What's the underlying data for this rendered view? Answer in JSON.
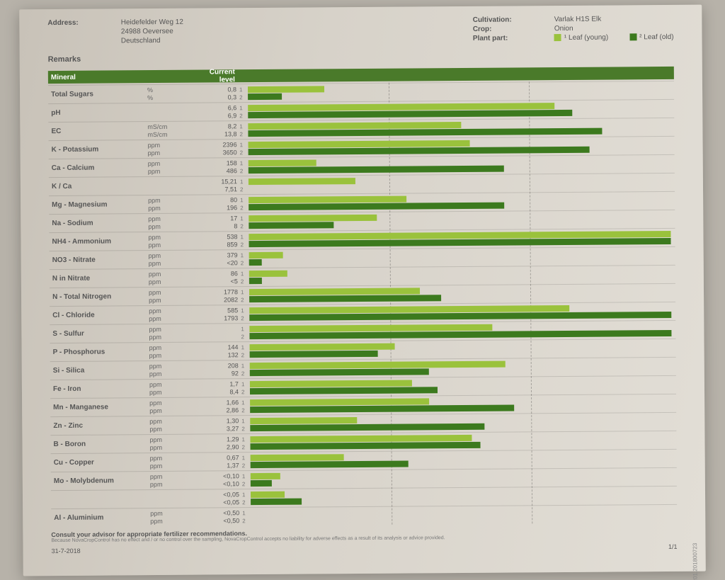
{
  "colors": {
    "young": "#9ac23c",
    "old": "#3c7a1e",
    "header_bg": "#4a7a2a",
    "text": "#4a4a4a",
    "paper": "#d7d2c9"
  },
  "header": {
    "address_label": "Address:",
    "address_lines": [
      "Heidefelder Weg 12",
      "24988  Oeversee",
      "Deutschland"
    ],
    "cultivation_label": "Cultivation:",
    "cultivation_value": "Varlak H1S Elk",
    "crop_label": "Crop:",
    "crop_value": "Onion",
    "plantpart_label": "Plant part:",
    "legend_young": "¹ Leaf (young)",
    "legend_old": "² Leaf (old)",
    "remarks_label": "Remarks"
  },
  "table": {
    "col_mineral": "Mineral",
    "col_currentlevel": "Current level",
    "bar_scale_max": 100,
    "gridlines_pct": [
      33,
      66
    ],
    "rows": [
      {
        "name": "Total Sugars",
        "unit": "%",
        "v1": "0,8",
        "v2": "0,3",
        "b1": 18,
        "b2": 8
      },
      {
        "name": "pH",
        "unit": "",
        "v1": "6,6",
        "v2": "6,9",
        "b1": 72,
        "b2": 76
      },
      {
        "name": "EC",
        "unit": "mS/cm",
        "v1": "8,2",
        "v2": "13,8",
        "b1": 50,
        "b2": 83
      },
      {
        "name": "K - Potassium",
        "unit": "ppm",
        "v1": "2396",
        "v2": "3650",
        "b1": 52,
        "b2": 80
      },
      {
        "name": "Ca - Calcium",
        "unit": "ppm",
        "v1": "158",
        "v2": "486",
        "b1": 16,
        "b2": 60
      },
      {
        "name": "K / Ca",
        "unit": "",
        "v1": "15,21",
        "v2": "7,51",
        "b1": 25,
        "b2": 0
      },
      {
        "name": "Mg - Magnesium",
        "unit": "ppm",
        "v1": "80",
        "v2": "196",
        "b1": 37,
        "b2": 60
      },
      {
        "name": "Na - Sodium",
        "unit": "ppm",
        "v1": "17",
        "v2": "8",
        "b1": 30,
        "b2": 20
      },
      {
        "name": "NH4 - Ammonium",
        "unit": "ppm",
        "v1": "538",
        "v2": "859",
        "b1": 99,
        "b2": 99
      },
      {
        "name": "NO3 - Nitrate",
        "unit": "ppm",
        "v1": "379",
        "v2": "<20",
        "b1": 8,
        "b2": 3
      },
      {
        "name": "N in Nitrate",
        "unit": "ppm",
        "v1": "86",
        "v2": "<5",
        "b1": 9,
        "b2": 3
      },
      {
        "name": "N - Total Nitrogen",
        "unit": "ppm",
        "v1": "1778",
        "v2": "2082",
        "b1": 40,
        "b2": 45
      },
      {
        "name": "Cl - Chloride",
        "unit": "ppm",
        "v1": "585",
        "v2": "1793",
        "b1": 75,
        "b2": 99
      },
      {
        "name": "S - Sulfur",
        "unit": "ppm",
        "v1": "",
        "v2": "",
        "b1": 57,
        "b2": 99
      },
      {
        "name": "P - Phosphorus",
        "unit": "ppm",
        "v1": "144",
        "v2": "132",
        "b1": 34,
        "b2": 30
      },
      {
        "name": "Si - Silica",
        "unit": "ppm",
        "v1": "208",
        "v2": "92",
        "b1": 60,
        "b2": 42
      },
      {
        "name": "Fe - Iron",
        "unit": "ppm",
        "v1": "1,7",
        "v2": "8,4",
        "b1": 38,
        "b2": 44
      },
      {
        "name": "Mn - Manganese",
        "unit": "ppm",
        "v1": "1,66",
        "v2": "2,86",
        "b1": 42,
        "b2": 62
      },
      {
        "name": "Zn - Zinc",
        "unit": "ppm",
        "v1": "1,30",
        "v2": "3,27",
        "b1": 25,
        "b2": 55
      },
      {
        "name": "B - Boron",
        "unit": "ppm",
        "v1": "1,29",
        "v2": "2,90",
        "b1": 52,
        "b2": 54
      },
      {
        "name": "Cu - Copper",
        "unit": "ppm",
        "v1": "0,67",
        "v2": "1,37",
        "b1": 22,
        "b2": 37
      },
      {
        "name": "Mo - Molybdenum",
        "unit": "ppm",
        "v1": "<0,10",
        "v2": "<0,10",
        "b1": 7,
        "b2": 5
      },
      {
        "name": "",
        "unit": "",
        "v1": "<0,05",
        "v2": "<0,05",
        "b1": 8,
        "b2": 12
      },
      {
        "name": "Al - Aluminium",
        "unit": "ppm",
        "v1": "<0,50",
        "v2": "<0,50",
        "b1": 0,
        "b2": 0
      }
    ]
  },
  "footer": {
    "main": "Consult your advisor for appropriate fertilizer recommendations.",
    "disclaimer": "Because NovaCropControl has no effect and / or no control over the sampling, NovaCropControl accepts no liability for adverse effects as a result of its analysis or advice provided.",
    "doc_code": "201.201800723",
    "date": "31-7-2018",
    "page": "1/1"
  }
}
